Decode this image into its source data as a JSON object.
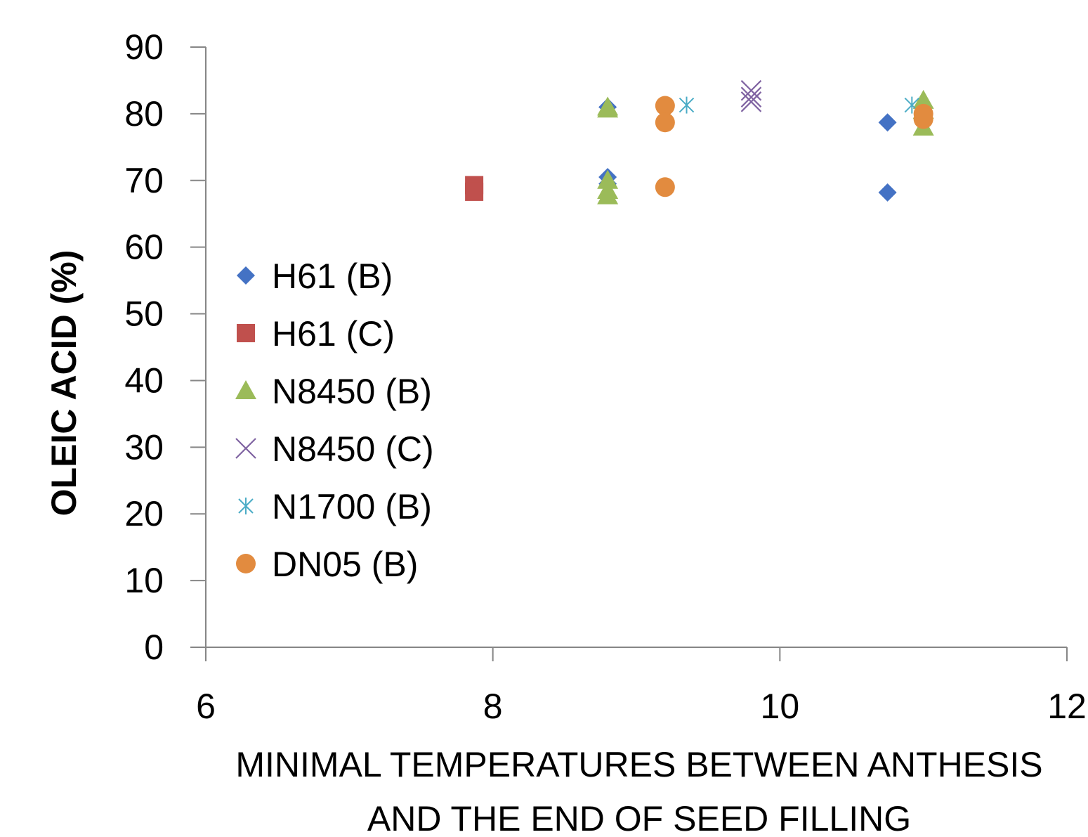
{
  "chart_data": {
    "type": "scatter",
    "title": "",
    "xlabel_lines": [
      "MINIMAL TEMPERATURES BETWEEN ANTHESIS",
      "AND THE END OF SEED FILLING"
    ],
    "ylabel": "OLEIC ACID (%)",
    "xlim": [
      6,
      12
    ],
    "ylim": [
      0,
      90
    ],
    "xticks": [
      6,
      8,
      10,
      12
    ],
    "yticks": [
      0,
      10,
      20,
      30,
      40,
      50,
      60,
      70,
      80,
      90
    ],
    "grid": false,
    "legend_position": "left",
    "series": [
      {
        "name": "H61 (B)",
        "marker": "diamond",
        "color": "#4472C4",
        "points": [
          [
            8.8,
            81.0
          ],
          [
            8.8,
            70.5
          ],
          [
            8.8,
            69.5
          ],
          [
            10.75,
            78.7
          ],
          [
            10.75,
            68.2
          ]
        ]
      },
      {
        "name": "H61 (C)",
        "marker": "square",
        "color": "#C0504D",
        "points": [
          [
            7.87,
            69.3
          ],
          [
            7.87,
            68.3
          ]
        ]
      },
      {
        "name": "N8450 (B)",
        "marker": "triangle",
        "color": "#9BBB59",
        "points": [
          [
            8.8,
            81.0
          ],
          [
            8.8,
            80.7
          ],
          [
            8.8,
            70.0
          ],
          [
            8.8,
            68.5
          ],
          [
            8.8,
            67.7
          ],
          [
            11.0,
            82.0
          ],
          [
            11.0,
            80.5
          ],
          [
            11.0,
            78.0
          ]
        ]
      },
      {
        "name": "N8450 (C)",
        "marker": "x",
        "color": "#8064A2",
        "points": [
          [
            9.8,
            83.5
          ],
          [
            9.8,
            82.5
          ],
          [
            9.8,
            81.8
          ]
        ]
      },
      {
        "name": "N1700 (B)",
        "marker": "asterisk",
        "color": "#4BACC6",
        "points": [
          [
            9.35,
            81.3
          ],
          [
            10.92,
            81.3
          ]
        ]
      },
      {
        "name": "DN05 (B)",
        "marker": "circle",
        "color": "#E28B3F",
        "points": [
          [
            9.2,
            81.2
          ],
          [
            9.2,
            78.7
          ],
          [
            9.2,
            69.0
          ],
          [
            11.0,
            80.0
          ],
          [
            11.0,
            79.2
          ]
        ]
      }
    ]
  }
}
